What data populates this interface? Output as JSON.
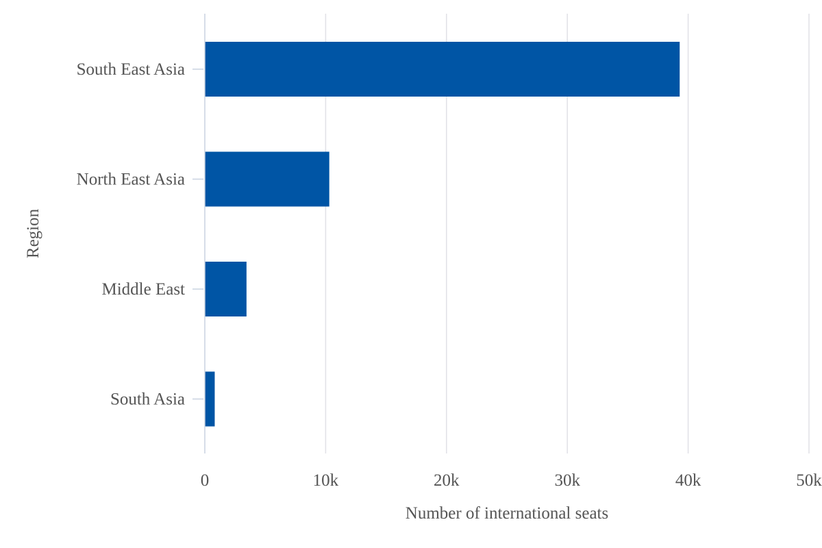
{
  "chart_data": {
    "type": "bar",
    "orientation": "horizontal",
    "categories": [
      "South East Asia",
      "North East Asia",
      "Middle East",
      "South Asia"
    ],
    "values": [
      39300,
      10300,
      3450,
      820
    ],
    "xlabel": "Number of international seats",
    "ylabel": "Region",
    "xlim": [
      0,
      50000
    ],
    "x_ticks": [
      0,
      10000,
      20000,
      30000,
      40000,
      50000
    ],
    "x_tick_labels": [
      "0",
      "10k",
      "20k",
      "30k",
      "40k",
      "50k"
    ],
    "grid": "vertical",
    "bar_color": "#0055a5"
  }
}
